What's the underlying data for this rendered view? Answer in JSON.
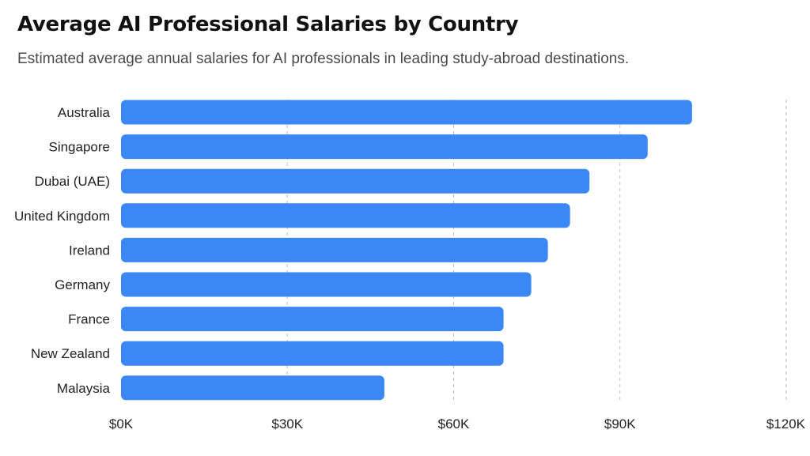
{
  "chart_data": {
    "type": "bar",
    "orientation": "horizontal",
    "title": "Average AI Professional Salaries by Country",
    "subtitle": "Estimated average annual salaries for AI professionals in leading study-abroad destinations.",
    "categories": [
      "Australia",
      "Singapore",
      "Dubai (UAE)",
      "United Kingdom",
      "Ireland",
      "Germany",
      "France",
      "New Zealand",
      "Malaysia"
    ],
    "values": [
      103000,
      95000,
      84500,
      81000,
      77000,
      74000,
      69000,
      69000,
      47500
    ],
    "xlim": [
      0,
      120000
    ],
    "xticks": [
      0,
      30000,
      60000,
      90000,
      120000
    ],
    "xtick_labels": [
      "$0K",
      "$30K",
      "$60K",
      "$90K",
      "$120K"
    ],
    "grid": true,
    "bar_color": "#3a87f5"
  }
}
